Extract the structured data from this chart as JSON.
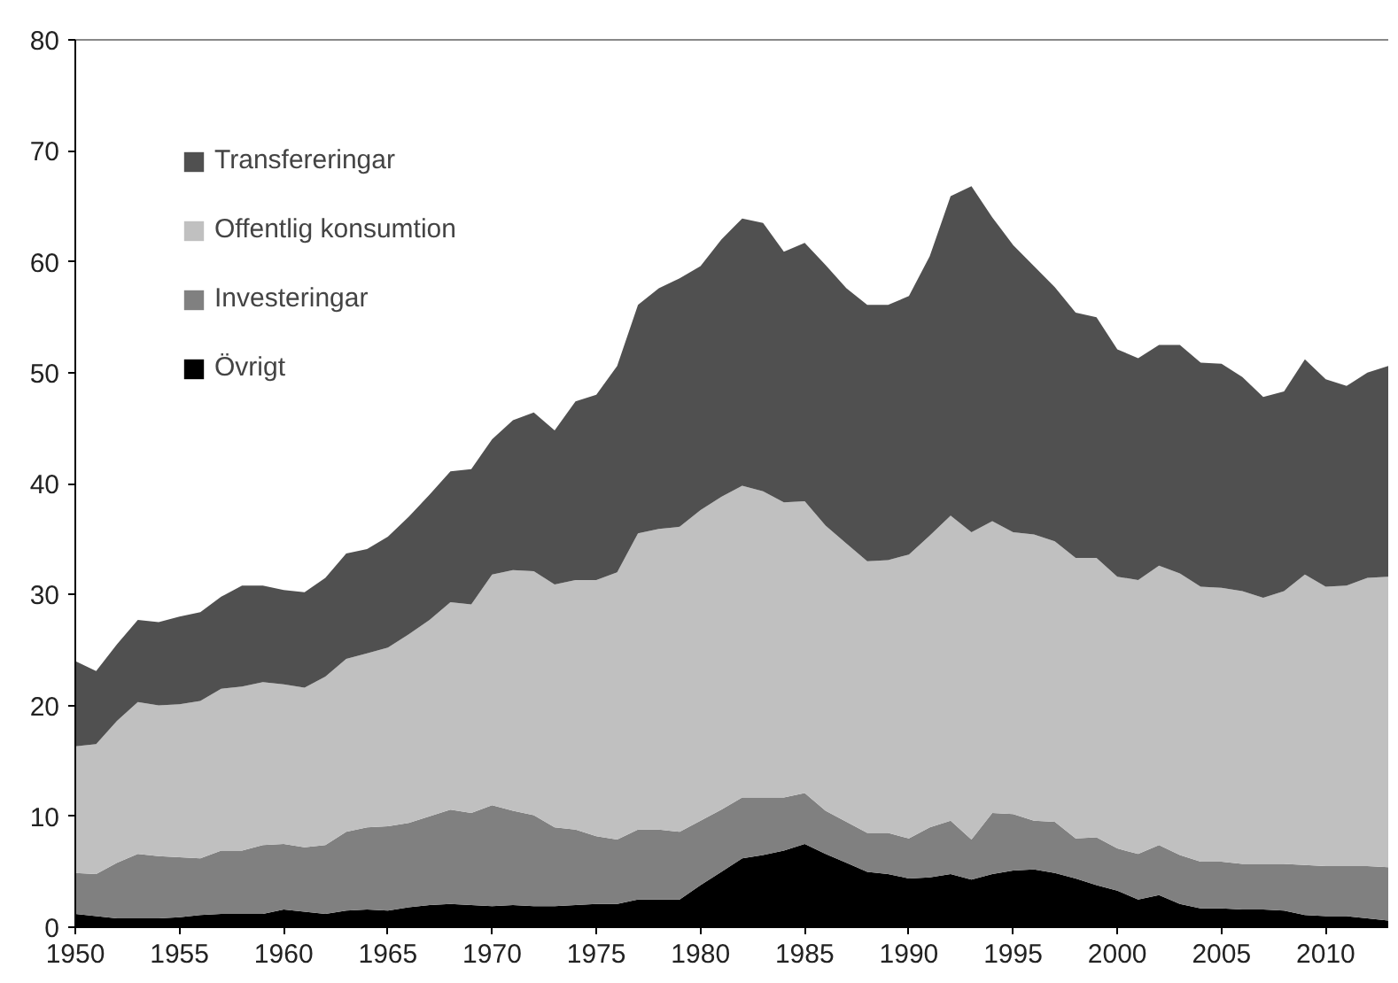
{
  "chart_data": {
    "type": "area",
    "stacked": true,
    "legend": "top left",
    "grid": false,
    "x": [
      1950,
      1951,
      1952,
      1953,
      1954,
      1955,
      1956,
      1957,
      1958,
      1959,
      1960,
      1961,
      1962,
      1963,
      1964,
      1965,
      1966,
      1967,
      1968,
      1969,
      1970,
      1971,
      1972,
      1973,
      1974,
      1975,
      1976,
      1977,
      1978,
      1979,
      1980,
      1981,
      1982,
      1983,
      1984,
      1985,
      1986,
      1987,
      1988,
      1989,
      1990,
      1991,
      1992,
      1993,
      1994,
      1995,
      1996,
      1997,
      1998,
      1999,
      2000,
      2001,
      2002,
      2003,
      2004,
      2005,
      2006,
      2007,
      2008,
      2009,
      2010,
      2011,
      2012,
      2013
    ],
    "xlim": [
      1950,
      2013
    ],
    "xticks": [
      1950,
      1955,
      1960,
      1965,
      1970,
      1975,
      1980,
      1985,
      1990,
      1995,
      2000,
      2005,
      2010
    ],
    "ylim": [
      0,
      80
    ],
    "yticks": [
      0,
      10,
      20,
      30,
      40,
      50,
      60,
      70,
      80
    ],
    "series": [
      {
        "name": "Övrigt",
        "color": "#000000",
        "values": [
          1.2,
          1.0,
          0.8,
          0.8,
          0.8,
          0.9,
          1.1,
          1.2,
          1.2,
          1.2,
          1.6,
          1.4,
          1.2,
          1.5,
          1.6,
          1.5,
          1.8,
          2.0,
          2.1,
          2.0,
          1.9,
          2.0,
          1.9,
          1.9,
          2.0,
          2.1,
          2.1,
          2.5,
          2.5,
          2.5,
          3.8,
          5.0,
          6.2,
          6.5,
          6.9,
          7.5,
          6.6,
          5.8,
          5.0,
          4.8,
          4.4,
          4.5,
          4.8,
          4.3,
          4.8,
          5.1,
          5.2,
          4.9,
          4.4,
          3.8,
          3.3,
          2.5,
          2.9,
          2.1,
          1.7,
          1.7,
          1.6,
          1.6,
          1.5,
          1.1,
          1.0,
          1.0,
          0.8,
          0.6
        ]
      },
      {
        "name": "Investeringar",
        "color": "#808080",
        "values": [
          3.7,
          3.8,
          5.0,
          5.8,
          5.6,
          5.4,
          5.1,
          5.7,
          5.7,
          6.2,
          5.9,
          5.8,
          6.2,
          7.1,
          7.4,
          7.6,
          7.6,
          8.0,
          8.5,
          8.3,
          9.1,
          8.5,
          8.2,
          7.1,
          6.8,
          6.1,
          5.8,
          6.3,
          6.3,
          6.1,
          5.8,
          5.6,
          5.5,
          5.2,
          4.8,
          4.6,
          3.9,
          3.7,
          3.5,
          3.7,
          3.6,
          4.5,
          4.8,
          3.6,
          5.5,
          5.1,
          4.4,
          4.6,
          3.6,
          4.3,
          3.8,
          4.1,
          4.5,
          4.4,
          4.2,
          4.2,
          4.1,
          4.1,
          4.2,
          4.5,
          4.5,
          4.5,
          4.7,
          4.8
        ]
      },
      {
        "name": "Offentlig konsumtion",
        "color": "#c0c0c0",
        "values": [
          11.4,
          11.7,
          12.8,
          13.7,
          13.6,
          13.8,
          14.2,
          14.6,
          14.8,
          14.7,
          14.4,
          14.4,
          15.2,
          15.6,
          15.7,
          16.1,
          17.0,
          17.7,
          18.7,
          18.8,
          20.8,
          21.7,
          22.0,
          21.9,
          22.5,
          23.1,
          24.1,
          26.7,
          27.1,
          27.5,
          28.0,
          28.2,
          28.1,
          27.6,
          26.6,
          26.3,
          25.7,
          25.1,
          24.5,
          24.6,
          25.6,
          26.3,
          27.5,
          27.7,
          26.3,
          25.4,
          25.8,
          25.3,
          25.3,
          25.2,
          24.5,
          24.7,
          25.2,
          25.4,
          24.8,
          24.7,
          24.6,
          24.0,
          24.6,
          26.2,
          25.2,
          25.3,
          26.0,
          26.2
        ]
      },
      {
        "name": "Transfereringar",
        "color": "#505050",
        "values": [
          7.7,
          6.6,
          6.9,
          7.4,
          7.5,
          7.9,
          8.0,
          8.3,
          9.1,
          8.7,
          8.5,
          8.6,
          8.9,
          9.5,
          9.4,
          10.0,
          10.6,
          11.3,
          11.8,
          12.2,
          12.2,
          13.5,
          14.3,
          13.9,
          16.1,
          16.7,
          18.6,
          20.6,
          21.7,
          22.4,
          22.0,
          23.2,
          24.1,
          24.2,
          22.6,
          23.3,
          23.5,
          23.0,
          23.1,
          23.0,
          23.3,
          25.2,
          28.8,
          31.2,
          27.4,
          25.9,
          24.2,
          22.9,
          22.1,
          21.7,
          20.5,
          20.0,
          19.9,
          20.6,
          20.2,
          20.2,
          19.3,
          18.1,
          18.0,
          19.4,
          18.7,
          18.0,
          18.5,
          19.0
        ]
      }
    ]
  }
}
